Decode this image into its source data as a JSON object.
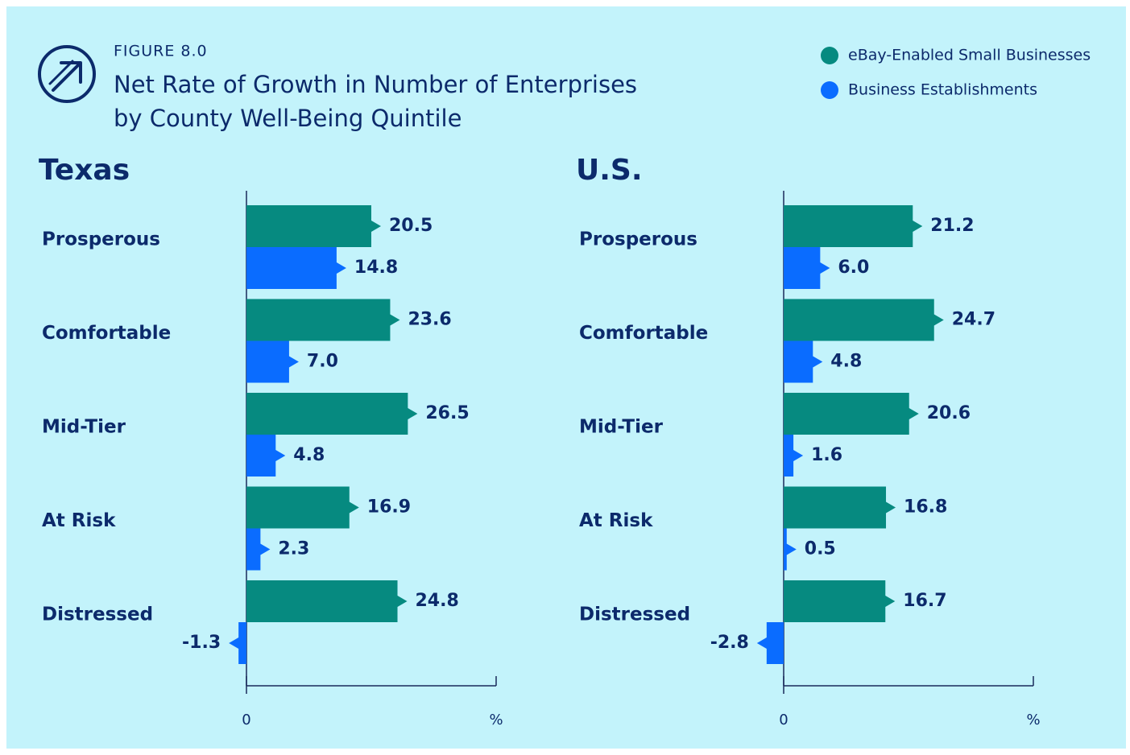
{
  "header": {
    "figure": "FIGURE 8.0",
    "title": [
      "Net Rate of Growth in Number of Enterprises",
      "by County Well-Being Quintile"
    ]
  },
  "chart_data": [
    {
      "type": "bar",
      "orientation": "horizontal",
      "title": "Texas",
      "categories": [
        "Prosperous",
        "Comfortable",
        "Mid-Tier",
        "At Risk",
        "Distressed"
      ],
      "series": [
        {
          "name": "eBay-Enabled Small Businesses",
          "color": "#068a80",
          "values": [
            20.5,
            23.6,
            26.5,
            16.9,
            24.8
          ],
          "value_labels": [
            "20.5",
            "23.6",
            "26.5",
            "16.9",
            "24.8"
          ]
        },
        {
          "name": "Business Establishments",
          "color": "#0a6cff",
          "values": [
            14.8,
            7,
            4.8,
            2.3,
            -1.3
          ],
          "value_labels": [
            "14.8",
            "7.0",
            "4.8",
            "2.3",
            "-1.3"
          ]
        }
      ],
      "xlim": [
        0,
        41
      ],
      "xticks": [
        0,
        {
          "value": 41,
          "label": "%"
        }
      ]
    },
    {
      "type": "bar",
      "orientation": "horizontal",
      "title": "U.S.",
      "categories": [
        "Prosperous",
        "Comfortable",
        "Mid-Tier",
        "At Risk",
        "Distressed"
      ],
      "series": [
        {
          "name": "eBay-Enabled Small Businesses",
          "color": "#068a80",
          "values": [
            21.2,
            24.7,
            20.6,
            16.8,
            16.7
          ],
          "value_labels": [
            "21.2",
            "24.7",
            "20.6",
            "16.8",
            "16.7"
          ]
        },
        {
          "name": "Business Establishments",
          "color": "#0a6cff",
          "values": [
            6,
            4.8,
            1.6,
            0.5,
            -2.8
          ],
          "value_labels": [
            "6.0",
            "4.8",
            "1.6",
            "0.5",
            "-2.8"
          ]
        }
      ],
      "xlim": [
        0,
        41
      ],
      "xticks": [
        0,
        {
          "value": 41,
          "label": "%"
        }
      ]
    }
  ]
}
